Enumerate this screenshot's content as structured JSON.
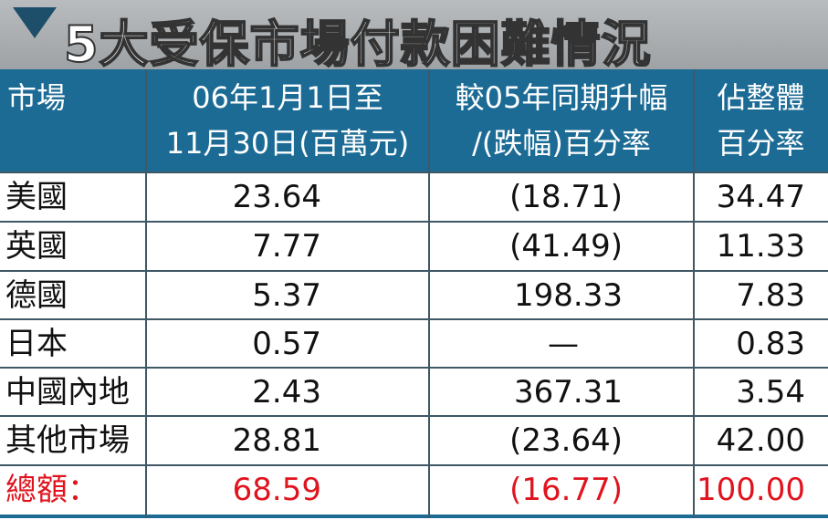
{
  "title": "5大受保市場付款困難情況",
  "table": {
    "header": [
      [
        "市場"
      ],
      [
        "06年1月1日至",
        "11月30日(百萬元)"
      ],
      [
        "較05年同期升幅",
        "/(跌幅)百分率"
      ],
      [
        "佔整體",
        "百分率"
      ]
    ],
    "rows": [
      [
        "美國",
        "23.64",
        "(18.71)",
        "34.47"
      ],
      [
        "英國",
        "7.77",
        "(41.49)",
        "11.33"
      ],
      [
        "德國",
        "5.37",
        "198.33",
        "7.83"
      ],
      [
        "日本",
        "0.57",
        "—",
        "0.83"
      ],
      [
        "中國內地",
        "2.43",
        "367.31",
        "3.54"
      ],
      [
        "其他市場",
        "28.81",
        "(23.64)",
        "42.00"
      ]
    ],
    "total": [
      "總額：",
      "68.59",
      "(16.77)",
      "100.00"
    ]
  }
}
